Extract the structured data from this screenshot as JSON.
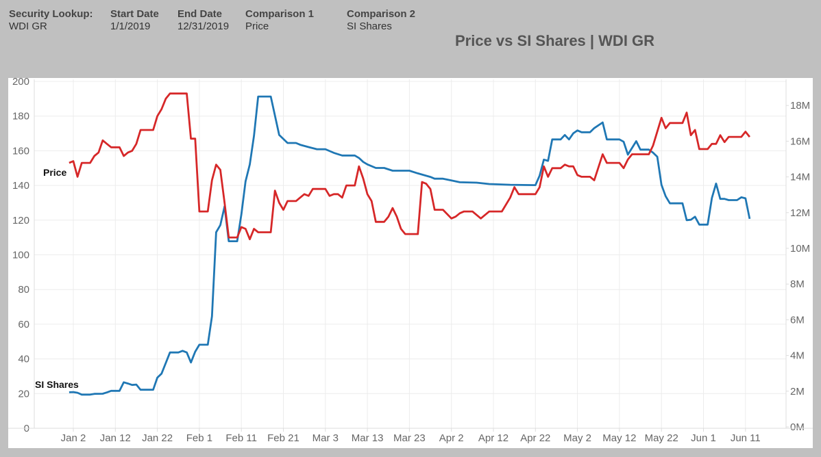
{
  "filters": [
    {
      "label": "Security Lookup:",
      "value": "WDI GR"
    },
    {
      "label": "Start Date",
      "value": "1/1/2019"
    },
    {
      "label": "End Date",
      "value": "12/31/2019"
    },
    {
      "label": "Comparison 1",
      "value": "Price"
    },
    {
      "label": "Comparison 2",
      "value": "SI Shares"
    }
  ],
  "chart_data": {
    "type": "line",
    "title": "Price vs SI Shares | WDI GR",
    "grid": true,
    "legend": "inline labels at left end of each series",
    "x_ticks": [
      "Jan 2",
      "Jan 12",
      "Jan 22",
      "Feb 1",
      "Feb 11",
      "Feb 21",
      "Mar 3",
      "Mar 13",
      "Mar 23",
      "Apr 2",
      "Apr 12",
      "Apr 22",
      "May 2",
      "May 12",
      "May 22",
      "Jun 1",
      "Jun 11"
    ],
    "x_tick_dates": [
      "2019-01-02",
      "2019-01-12",
      "2019-01-22",
      "2019-02-01",
      "2019-02-11",
      "2019-02-21",
      "2019-03-03",
      "2019-03-13",
      "2019-03-23",
      "2019-04-02",
      "2019-04-12",
      "2019-04-22",
      "2019-05-02",
      "2019-05-12",
      "2019-05-22",
      "2019-06-01",
      "2019-06-11"
    ],
    "y_left": {
      "ticks": [
        "0",
        "20",
        "40",
        "60",
        "80",
        "100",
        "120",
        "140",
        "160",
        "180",
        "200"
      ],
      "range": [
        0,
        200
      ]
    },
    "y_right": {
      "ticks": [
        "0M",
        "2M",
        "4M",
        "6M",
        "8M",
        "10M",
        "12M",
        "14M",
        "16M",
        "18M"
      ],
      "range": [
        0,
        19
      ]
    },
    "series": [
      {
        "name": "Price",
        "axis": "left",
        "color": "#d62728",
        "points": [
          [
            "2019-01-01",
            153
          ],
          [
            "2019-01-02",
            154
          ],
          [
            "2019-01-03",
            145
          ],
          [
            "2019-01-04",
            153
          ],
          [
            "2019-01-06",
            153
          ],
          [
            "2019-01-07",
            157
          ],
          [
            "2019-01-08",
            159
          ],
          [
            "2019-01-09",
            166
          ],
          [
            "2019-01-10",
            164
          ],
          [
            "2019-01-11",
            162
          ],
          [
            "2019-01-13",
            162
          ],
          [
            "2019-01-14",
            157
          ],
          [
            "2019-01-15",
            159
          ],
          [
            "2019-01-16",
            160
          ],
          [
            "2019-01-17",
            164
          ],
          [
            "2019-01-18",
            172
          ],
          [
            "2019-01-21",
            172
          ],
          [
            "2019-01-22",
            180
          ],
          [
            "2019-01-23",
            184
          ],
          [
            "2019-01-24",
            190
          ],
          [
            "2019-01-25",
            193
          ],
          [
            "2019-01-28",
            193
          ],
          [
            "2019-01-29",
            193
          ],
          [
            "2019-01-30",
            167
          ],
          [
            "2019-01-31",
            167
          ],
          [
            "2019-02-01",
            125
          ],
          [
            "2019-02-03",
            125
          ],
          [
            "2019-02-04",
            143
          ],
          [
            "2019-02-05",
            152
          ],
          [
            "2019-02-06",
            149
          ],
          [
            "2019-02-07",
            130
          ],
          [
            "2019-02-08",
            110
          ],
          [
            "2019-02-10",
            110
          ],
          [
            "2019-02-11",
            116
          ],
          [
            "2019-02-12",
            115
          ],
          [
            "2019-02-13",
            109
          ],
          [
            "2019-02-14",
            115
          ],
          [
            "2019-02-15",
            113
          ],
          [
            "2019-02-18",
            113
          ],
          [
            "2019-02-19",
            137
          ],
          [
            "2019-02-20",
            130
          ],
          [
            "2019-02-21",
            126
          ],
          [
            "2019-02-22",
            131
          ],
          [
            "2019-02-24",
            131
          ],
          [
            "2019-02-25",
            133
          ],
          [
            "2019-02-26",
            135
          ],
          [
            "2019-02-27",
            134
          ],
          [
            "2019-02-28",
            138
          ],
          [
            "2019-03-03",
            138
          ],
          [
            "2019-03-04",
            134
          ],
          [
            "2019-03-05",
            135
          ],
          [
            "2019-03-06",
            135
          ],
          [
            "2019-03-07",
            133
          ],
          [
            "2019-03-08",
            140
          ],
          [
            "2019-03-10",
            140
          ],
          [
            "2019-03-11",
            151
          ],
          [
            "2019-03-12",
            144
          ],
          [
            "2019-03-13",
            135
          ],
          [
            "2019-03-14",
            131
          ],
          [
            "2019-03-15",
            119
          ],
          [
            "2019-03-17",
            119
          ],
          [
            "2019-03-18",
            122
          ],
          [
            "2019-03-19",
            127
          ],
          [
            "2019-03-20",
            122
          ],
          [
            "2019-03-21",
            115
          ],
          [
            "2019-03-22",
            112
          ],
          [
            "2019-03-25",
            112
          ],
          [
            "2019-03-26",
            142
          ],
          [
            "2019-03-27",
            141
          ],
          [
            "2019-03-28",
            138
          ],
          [
            "2019-03-29",
            126
          ],
          [
            "2019-03-31",
            126
          ],
          [
            "2019-04-02",
            121
          ],
          [
            "2019-04-03",
            122
          ],
          [
            "2019-04-04",
            124
          ],
          [
            "2019-04-05",
            125
          ],
          [
            "2019-04-07",
            125
          ],
          [
            "2019-04-09",
            121
          ],
          [
            "2019-04-11",
            125
          ],
          [
            "2019-04-14",
            125
          ],
          [
            "2019-04-16",
            133
          ],
          [
            "2019-04-17",
            139
          ],
          [
            "2019-04-18",
            135
          ],
          [
            "2019-04-22",
            135
          ],
          [
            "2019-04-23",
            139
          ],
          [
            "2019-04-24",
            151
          ],
          [
            "2019-04-25",
            145
          ],
          [
            "2019-04-26",
            150
          ],
          [
            "2019-04-28",
            150
          ],
          [
            "2019-04-29",
            152
          ],
          [
            "2019-04-30",
            151
          ],
          [
            "2019-05-01",
            151
          ],
          [
            "2019-05-02",
            146
          ],
          [
            "2019-05-03",
            145
          ],
          [
            "2019-05-05",
            145
          ],
          [
            "2019-05-06",
            143
          ],
          [
            "2019-05-08",
            158
          ],
          [
            "2019-05-09",
            153
          ],
          [
            "2019-05-12",
            153
          ],
          [
            "2019-05-13",
            150
          ],
          [
            "2019-05-14",
            155
          ],
          [
            "2019-05-15",
            158
          ],
          [
            "2019-05-19",
            158
          ],
          [
            "2019-05-20",
            163
          ],
          [
            "2019-05-22",
            179
          ],
          [
            "2019-05-23",
            173
          ],
          [
            "2019-05-24",
            176
          ],
          [
            "2019-05-27",
            176
          ],
          [
            "2019-05-28",
            182
          ],
          [
            "2019-05-29",
            169
          ],
          [
            "2019-05-30",
            172
          ],
          [
            "2019-05-31",
            161
          ],
          [
            "2019-06-02",
            161
          ],
          [
            "2019-06-03",
            164
          ],
          [
            "2019-06-04",
            164
          ],
          [
            "2019-06-05",
            169
          ],
          [
            "2019-06-06",
            165
          ],
          [
            "2019-06-07",
            168
          ],
          [
            "2019-06-10",
            168
          ],
          [
            "2019-06-11",
            171
          ],
          [
            "2019-06-12",
            168
          ]
        ]
      },
      {
        "name": "SI Shares",
        "axis": "right",
        "color": "#1f77b4",
        "points": [
          [
            "2019-01-01",
            1.94
          ],
          [
            "2019-01-02",
            1.95
          ],
          [
            "2019-01-03",
            1.91
          ],
          [
            "2019-01-04",
            1.81
          ],
          [
            "2019-01-06",
            1.81
          ],
          [
            "2019-01-07",
            1.85
          ],
          [
            "2019-01-09",
            1.86
          ],
          [
            "2019-01-10",
            1.93
          ],
          [
            "2019-01-11",
            2.02
          ],
          [
            "2019-01-13",
            2.02
          ],
          [
            "2019-01-14",
            2.5
          ],
          [
            "2019-01-15",
            2.43
          ],
          [
            "2019-01-16",
            2.35
          ],
          [
            "2019-01-17",
            2.37
          ],
          [
            "2019-01-18",
            2.08
          ],
          [
            "2019-01-21",
            2.08
          ],
          [
            "2019-01-22",
            2.76
          ],
          [
            "2019-01-23",
            2.98
          ],
          [
            "2019-01-24",
            3.58
          ],
          [
            "2019-01-25",
            4.17
          ],
          [
            "2019-01-27",
            4.17
          ],
          [
            "2019-01-28",
            4.26
          ],
          [
            "2019-01-29",
            4.17
          ],
          [
            "2019-01-30",
            3.61
          ],
          [
            "2019-01-31",
            4.21
          ],
          [
            "2019-02-01",
            4.6
          ],
          [
            "2019-02-03",
            4.6
          ],
          [
            "2019-02-04",
            6.19
          ],
          [
            "2019-02-05",
            10.9
          ],
          [
            "2019-02-06",
            11.3
          ],
          [
            "2019-02-07",
            12.35
          ],
          [
            "2019-02-08",
            10.4
          ],
          [
            "2019-02-10",
            10.4
          ],
          [
            "2019-02-11",
            11.9
          ],
          [
            "2019-02-12",
            13.75
          ],
          [
            "2019-02-13",
            14.7
          ],
          [
            "2019-02-14",
            16.3
          ],
          [
            "2019-02-15",
            18.5
          ],
          [
            "2019-02-18",
            18.5
          ],
          [
            "2019-02-20",
            16.35
          ],
          [
            "2019-02-22",
            15.9
          ],
          [
            "2019-02-24",
            15.9
          ],
          [
            "2019-02-25",
            15.8
          ],
          [
            "2019-02-27",
            15.67
          ],
          [
            "2019-03-01",
            15.55
          ],
          [
            "2019-03-03",
            15.55
          ],
          [
            "2019-03-05",
            15.35
          ],
          [
            "2019-03-07",
            15.2
          ],
          [
            "2019-03-10",
            15.2
          ],
          [
            "2019-03-11",
            15.06
          ],
          [
            "2019-03-12",
            14.84
          ],
          [
            "2019-03-13",
            14.7
          ],
          [
            "2019-03-15",
            14.5
          ],
          [
            "2019-03-17",
            14.5
          ],
          [
            "2019-03-19",
            14.35
          ],
          [
            "2019-03-23",
            14.35
          ],
          [
            "2019-03-25",
            14.2
          ],
          [
            "2019-03-28",
            14.0
          ],
          [
            "2019-03-29",
            13.9
          ],
          [
            "2019-03-31",
            13.9
          ],
          [
            "2019-04-02",
            13.8
          ],
          [
            "2019-04-04",
            13.7
          ],
          [
            "2019-04-08",
            13.68
          ],
          [
            "2019-04-11",
            13.6
          ],
          [
            "2019-04-16",
            13.56
          ],
          [
            "2019-04-22",
            13.54
          ],
          [
            "2019-04-23",
            14.07
          ],
          [
            "2019-04-24",
            14.97
          ],
          [
            "2019-04-25",
            14.9
          ],
          [
            "2019-04-26",
            16.1
          ],
          [
            "2019-04-28",
            16.1
          ],
          [
            "2019-04-29",
            16.35
          ],
          [
            "2019-04-30",
            16.1
          ],
          [
            "2019-05-01",
            16.44
          ],
          [
            "2019-05-02",
            16.6
          ],
          [
            "2019-05-03",
            16.5
          ],
          [
            "2019-05-05",
            16.5
          ],
          [
            "2019-05-06",
            16.73
          ],
          [
            "2019-05-08",
            17.05
          ],
          [
            "2019-05-09",
            16.1
          ],
          [
            "2019-05-12",
            16.1
          ],
          [
            "2019-05-13",
            15.97
          ],
          [
            "2019-05-14",
            15.25
          ],
          [
            "2019-05-16",
            16.0
          ],
          [
            "2019-05-17",
            15.53
          ],
          [
            "2019-05-19",
            15.53
          ],
          [
            "2019-05-20",
            15.36
          ],
          [
            "2019-05-21",
            15.13
          ],
          [
            "2019-05-22",
            13.56
          ],
          [
            "2019-05-23",
            12.92
          ],
          [
            "2019-05-24",
            12.52
          ],
          [
            "2019-05-27",
            12.52
          ],
          [
            "2019-05-28",
            11.58
          ],
          [
            "2019-05-29",
            11.6
          ],
          [
            "2019-05-30",
            11.77
          ],
          [
            "2019-05-31",
            11.33
          ],
          [
            "2019-06-02",
            11.33
          ],
          [
            "2019-06-03",
            12.82
          ],
          [
            "2019-06-04",
            13.63
          ],
          [
            "2019-06-05",
            12.77
          ],
          [
            "2019-06-06",
            12.77
          ],
          [
            "2019-06-07",
            12.7
          ],
          [
            "2019-06-09",
            12.7
          ],
          [
            "2019-06-10",
            12.86
          ],
          [
            "2019-06-11",
            12.8
          ],
          [
            "2019-06-12",
            11.65
          ]
        ]
      }
    ]
  }
}
